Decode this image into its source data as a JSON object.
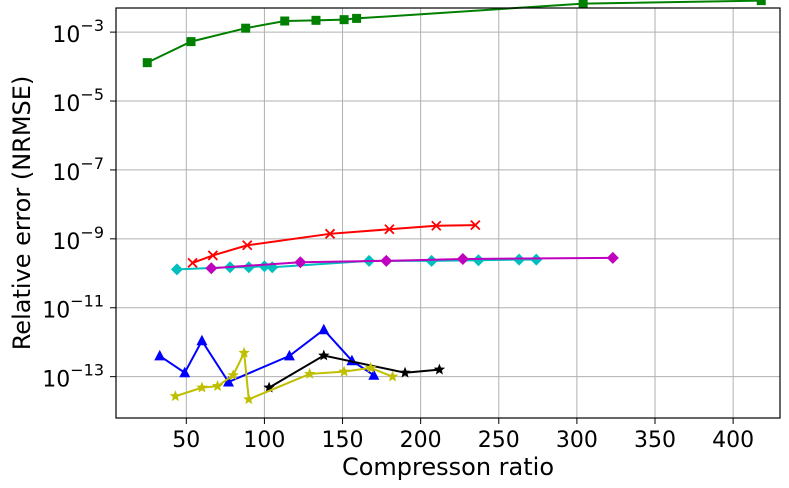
{
  "chart_data": {
    "type": "line",
    "title": "",
    "xlabel": "Compresson ratio",
    "ylabel": "Relative error (NRMSE)",
    "xlim": [
      5,
      430
    ],
    "ylog": true,
    "ylim_exp": [
      -14.2,
      -2.3
    ],
    "xticks": [
      50,
      100,
      150,
      200,
      250,
      300,
      350,
      400
    ],
    "xtick_labels": [
      "50",
      "100",
      "150",
      "200",
      "250",
      "300",
      "350",
      "400"
    ],
    "yticks_exp": [
      -13,
      -11,
      -9,
      -7,
      -5,
      -3
    ],
    "ytick_labels": [
      "10",
      "10",
      "10",
      "10",
      "10",
      "10"
    ],
    "ytick_exponents": [
      "−13",
      "−11",
      "−9",
      "−7",
      "−5",
      "−3"
    ],
    "grid": true,
    "legend": "none",
    "series": [
      {
        "color": "#008000",
        "marker": "square",
        "x": [
          25,
          53,
          88,
          113,
          133,
          151,
          159,
          304,
          418
        ],
        "y": [
          0.00013,
          0.00053,
          0.0013,
          0.0021,
          0.0022,
          0.0023,
          0.0025,
          0.0067,
          0.0082
        ]
      },
      {
        "color": "#ff0000",
        "marker": "x",
        "x": [
          54,
          67,
          89,
          142,
          180,
          210,
          235
        ],
        "y": [
          2e-10,
          3.3e-10,
          6.5e-10,
          1.4e-09,
          1.9e-09,
          2.4e-09,
          2.5e-09
        ]
      },
      {
        "color": "#00bfbf",
        "marker": "diamond",
        "x": [
          44,
          78,
          90,
          100,
          105,
          167,
          207,
          237,
          263,
          274
        ],
        "y": [
          1.3e-10,
          1.5e-10,
          1.5e-10,
          1.6e-10,
          1.5e-10,
          2.3e-10,
          2.3e-10,
          2.4e-10,
          2.5e-10,
          2.5e-10
        ]
      },
      {
        "color": "#bf00bf",
        "marker": "diamond",
        "x": [
          66,
          123,
          178,
          227,
          323
        ],
        "y": [
          1.4e-10,
          2.1e-10,
          2.3e-10,
          2.6e-10,
          2.8e-10
        ]
      },
      {
        "color": "#0000ff",
        "marker": "triangle",
        "x": [
          33,
          49,
          60,
          77,
          116,
          138,
          156,
          170
        ],
        "y": [
          4e-13,
          1.3e-13,
          1.1e-12,
          7e-14,
          4e-13,
          2.3e-12,
          2.9e-13,
          1.1e-13
        ]
      },
      {
        "color": "#000000",
        "marker": "star",
        "x": [
          103,
          138,
          190,
          212
        ],
        "y": [
          4.8e-14,
          4.1e-13,
          1.3e-13,
          1.6e-13
        ]
      },
      {
        "color": "#bfbf00",
        "marker": "star",
        "x": [
          43,
          60,
          70,
          80,
          87,
          90,
          129,
          151,
          168,
          182
        ],
        "y": [
          2.7e-14,
          4.8e-14,
          5.3e-14,
          1.1e-13,
          4.9e-13,
          2.2e-14,
          1.2e-13,
          1.4e-13,
          1.8e-13,
          1e-13
        ]
      }
    ]
  }
}
